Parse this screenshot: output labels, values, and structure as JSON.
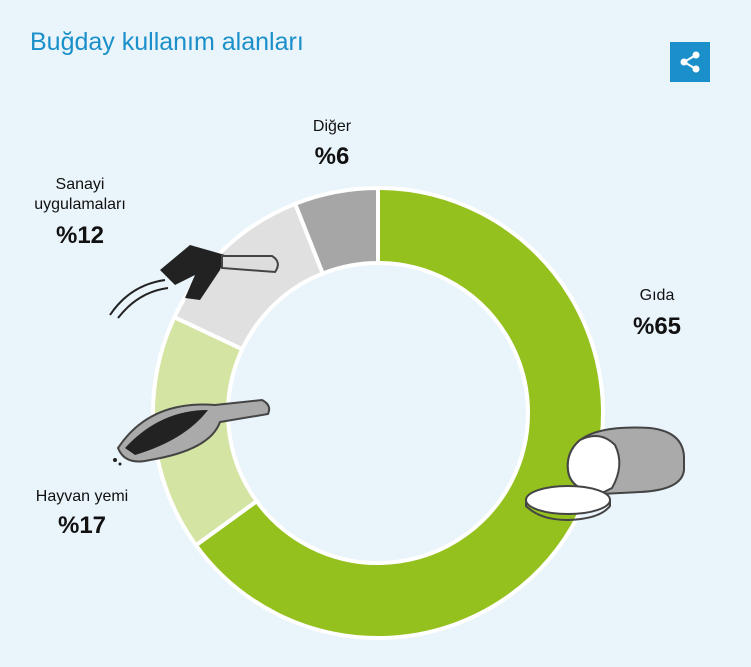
{
  "chart_data": {
    "type": "donut",
    "title": "Buğday kullanım alanları",
    "categories": [
      "Gıda",
      "Hayvan yemi",
      "Sanayi uygulamaları",
      "Diğer"
    ],
    "values": [
      65,
      17,
      12,
      6
    ],
    "value_labels": [
      "%65",
      "%17",
      "%12",
      "%6"
    ],
    "colors": [
      "#95c11f",
      "#d4e4a3",
      "#e0e0e0",
      "#a6a6a6"
    ]
  }
}
